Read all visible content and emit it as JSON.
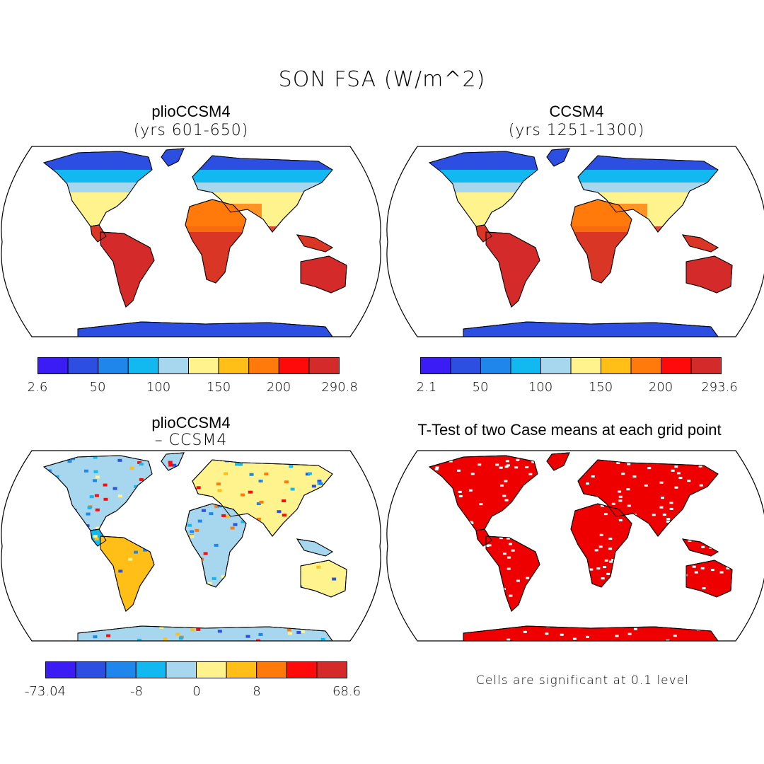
{
  "title": "SON FSA (W/m^2)",
  "colors": {
    "scale": [
      "#3c1cf5",
      "#2c4fe2",
      "#1f86eb",
      "#12b8f0",
      "#a6d7ee",
      "#fff38e",
      "#ffbf17",
      "#ff7a0a",
      "#ff0a0a",
      "#d42a2a"
    ],
    "significant": "#ee0000"
  },
  "panels": {
    "top_left": {
      "title": "plioCCSM4",
      "subtitle": "(yrs 601-650)",
      "colorbar_labels": [
        "2.6",
        "50",
        "100",
        "150",
        "200",
        "290.8"
      ]
    },
    "top_right": {
      "title": "CCSM4",
      "subtitle": "(yrs 1251-1300)",
      "colorbar_labels": [
        "2.1",
        "50",
        "100",
        "150",
        "200",
        "293.6"
      ]
    },
    "bottom_left": {
      "title": "plioCCSM4",
      "subtitle": "– CCSM4",
      "colorbar_labels": [
        "-73.04",
        "-8",
        "0",
        "8",
        "68.6"
      ]
    },
    "bottom_right": {
      "title": "T-Test of two Case means at each grid point",
      "note": "Cells are significant at 0.1 level"
    }
  }
}
